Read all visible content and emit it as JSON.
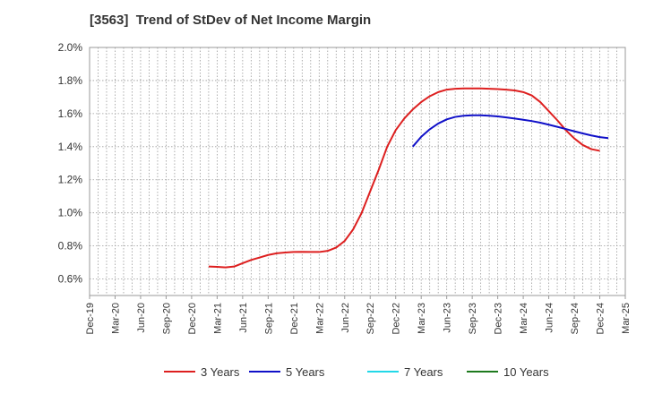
{
  "chart_data": {
    "type": "line",
    "title": "[3563]  Trend of StDev of Net Income Margin",
    "xlabel": "",
    "ylabel": "",
    "ylim": [
      0.5,
      2.0
    ],
    "y_ticks": [
      "0.6%",
      "0.8%",
      "1.0%",
      "1.2%",
      "1.4%",
      "1.6%",
      "1.8%",
      "2.0%"
    ],
    "y_tick_values": [
      0.6,
      0.8,
      1.0,
      1.2,
      1.4,
      1.6,
      1.8,
      2.0
    ],
    "x_ticks": [
      "Dec-19",
      "Mar-20",
      "Jun-20",
      "Sep-20",
      "Dec-20",
      "Mar-21",
      "Jun-21",
      "Sep-21",
      "Dec-21",
      "Mar-22",
      "Jun-22",
      "Sep-22",
      "Dec-22",
      "Mar-23",
      "Jun-23",
      "Sep-23",
      "Dec-23",
      "Mar-24",
      "Jun-24",
      "Sep-24",
      "Dec-24",
      "Mar-25"
    ],
    "grid": true,
    "legend_position": "bottom",
    "series": [
      {
        "name": "3 Years",
        "color": "#dd1f1f",
        "points": [
          [
            "Feb-21",
            0.675
          ],
          [
            "Mar-21",
            0.673
          ],
          [
            "Apr-21",
            0.67
          ],
          [
            "May-21",
            0.675
          ],
          [
            "Jun-21",
            0.695
          ],
          [
            "Jul-21",
            0.715
          ],
          [
            "Aug-21",
            0.73
          ],
          [
            "Sep-21",
            0.745
          ],
          [
            "Oct-21",
            0.755
          ],
          [
            "Nov-21",
            0.76
          ],
          [
            "Dec-21",
            0.763
          ],
          [
            "Jan-22",
            0.764
          ],
          [
            "Feb-22",
            0.763
          ],
          [
            "Mar-22",
            0.763
          ],
          [
            "Apr-22",
            0.77
          ],
          [
            "May-22",
            0.79
          ],
          [
            "Jun-22",
            0.83
          ],
          [
            "Jul-22",
            0.9
          ],
          [
            "Aug-22",
            1.0
          ],
          [
            "Sep-22",
            1.13
          ],
          [
            "Oct-22",
            1.26
          ],
          [
            "Nov-22",
            1.4
          ],
          [
            "Dec-22",
            1.5
          ],
          [
            "Jan-23",
            1.57
          ],
          [
            "Feb-23",
            1.625
          ],
          [
            "Mar-23",
            1.67
          ],
          [
            "Apr-23",
            1.705
          ],
          [
            "May-23",
            1.73
          ],
          [
            "Jun-23",
            1.745
          ],
          [
            "Jul-23",
            1.75
          ],
          [
            "Aug-23",
            1.752
          ],
          [
            "Sep-23",
            1.752
          ],
          [
            "Oct-23",
            1.752
          ],
          [
            "Nov-23",
            1.75
          ],
          [
            "Dec-23",
            1.748
          ],
          [
            "Jan-24",
            1.745
          ],
          [
            "Feb-24",
            1.74
          ],
          [
            "Mar-24",
            1.73
          ],
          [
            "Apr-24",
            1.71
          ],
          [
            "May-24",
            1.67
          ],
          [
            "Jun-24",
            1.615
          ],
          [
            "Jul-24",
            1.56
          ],
          [
            "Aug-24",
            1.5
          ],
          [
            "Sep-24",
            1.45
          ],
          [
            "Oct-24",
            1.41
          ],
          [
            "Nov-24",
            1.385
          ],
          [
            "Dec-24",
            1.375
          ]
        ]
      },
      {
        "name": "5 Years",
        "color": "#1010c8",
        "points": [
          [
            "Feb-23",
            1.4
          ],
          [
            "Mar-23",
            1.46
          ],
          [
            "Apr-23",
            1.505
          ],
          [
            "May-23",
            1.54
          ],
          [
            "Jun-23",
            1.565
          ],
          [
            "Jul-23",
            1.58
          ],
          [
            "Aug-23",
            1.587
          ],
          [
            "Sep-23",
            1.59
          ],
          [
            "Oct-23",
            1.59
          ],
          [
            "Nov-23",
            1.587
          ],
          [
            "Dec-23",
            1.583
          ],
          [
            "Jan-24",
            1.577
          ],
          [
            "Feb-24",
            1.57
          ],
          [
            "Mar-24",
            1.563
          ],
          [
            "Apr-24",
            1.555
          ],
          [
            "May-24",
            1.545
          ],
          [
            "Jun-24",
            1.533
          ],
          [
            "Jul-24",
            1.52
          ],
          [
            "Aug-24",
            1.507
          ],
          [
            "Sep-24",
            1.493
          ],
          [
            "Oct-24",
            1.48
          ],
          [
            "Nov-24",
            1.468
          ],
          [
            "Dec-24",
            1.458
          ],
          [
            "Jan-25",
            1.452
          ]
        ]
      },
      {
        "name": "7 Years",
        "color": "#22d8e8",
        "points": []
      },
      {
        "name": "10 Years",
        "color": "#1e7a1e",
        "points": []
      }
    ]
  }
}
